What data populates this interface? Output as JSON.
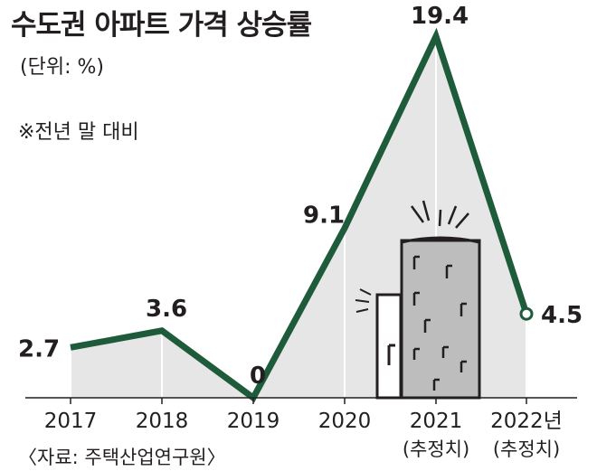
{
  "header": {
    "title": "수도권 아파트 가격 상승률",
    "unit": "(단위: %)",
    "note": "※전년 말 대비"
  },
  "source": "〈자료: 주택산업연구원〉",
  "colors": {
    "line": "#1e5b3a",
    "area": "#e6e6e6",
    "axis": "#231f20",
    "building_dark": "#bdbdbd",
    "building_light": "#ffffff"
  },
  "chart_data": {
    "type": "line",
    "categories": [
      "2017",
      "2018",
      "2019",
      "2020",
      "2021",
      "2022년"
    ],
    "sublabels": [
      "",
      "",
      "",
      "",
      "(추정치)",
      "(추정치)"
    ],
    "values": [
      2.7,
      3.6,
      0,
      9.1,
      19.4,
      4.5
    ],
    "value_labels": [
      "2.7",
      "3.6",
      "0",
      "9.1",
      "19.4",
      "4.5"
    ],
    "title": "수도권 아파트 가격 상승률",
    "ylabel": "",
    "ylim": [
      0,
      19.4
    ],
    "grid": false,
    "legend": "none"
  }
}
